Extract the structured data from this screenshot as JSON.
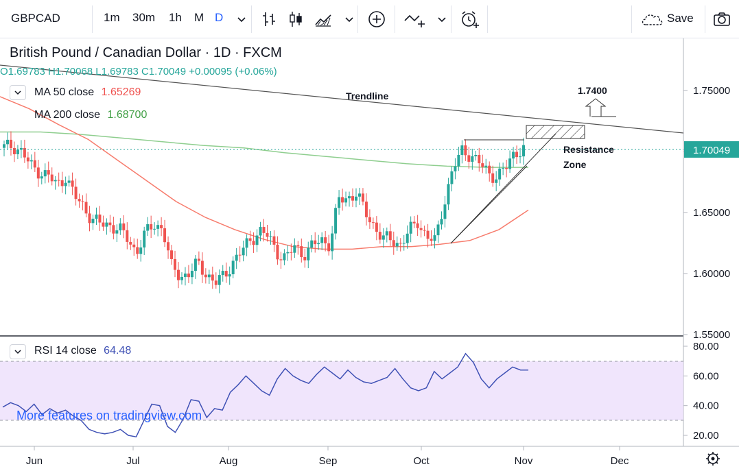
{
  "toolbar": {
    "symbol": "GBPCAD",
    "intervals": [
      "1m",
      "30m",
      "1h",
      "M",
      "D"
    ],
    "active_interval": "D",
    "save_label": "Save",
    "icons": [
      "chevron-down-icon",
      "bar-chart-icon",
      "candles-icon",
      "area-chart-icon",
      "add-indicator-icon",
      "compare-icon",
      "alert-clock-icon",
      "cloud-icon",
      "camera-icon"
    ]
  },
  "legend": {
    "title": "British Pound / Canadian Dollar · 1D · FXCM",
    "ohlc": "O1.69783 H1.70068 L1.69783 C1.70049 +0.00095 (+0.06%)",
    "ma50_label": "MA 50 close",
    "ma50_value": "1.65269",
    "ma200_label": "MA 200 close",
    "ma200_value": "1.68700",
    "rsi_label": "RSI 14 close",
    "rsi_value": "64.48"
  },
  "watermark": "More features on tradingview.com",
  "colors": {
    "up": "#26a69a",
    "down": "#ef5350",
    "ma50": "#f77c6d",
    "ma200": "#8fce8f",
    "rsi_line": "#3f51b5",
    "rsi_band": "#ecdffb",
    "accent": "#2962ff",
    "trendline": "#555555"
  },
  "chart_data": [
    {
      "type": "candlestick",
      "title": "British Pound / Canadian Dollar · 1D · FXCM",
      "y_ticks": [
        "1.75000",
        "1.70000",
        "1.65000",
        "1.60000",
        "1.55000"
      ],
      "x_ticks": [
        "Jun",
        "Jul",
        "Aug",
        "Sep",
        "Oct",
        "Nov",
        "Dec"
      ],
      "ylim": [
        1.545,
        1.79
      ],
      "last_price": "1.70049",
      "annotations": {
        "trendline_label": "Trendline",
        "target_label": "1.7400",
        "resistance_label_1": "Resistance",
        "resistance_label_2": "Zone"
      },
      "close_path": [
        1.703,
        1.705,
        1.7,
        1.688,
        1.684,
        1.68,
        1.672,
        1.68,
        1.663,
        1.655,
        1.645,
        1.64,
        1.64,
        1.637,
        1.628,
        1.618,
        1.632,
        1.64,
        1.638,
        1.605,
        1.598,
        1.6,
        1.608,
        1.6,
        1.592,
        1.598,
        1.61,
        1.618,
        1.628,
        1.635,
        1.63,
        1.618,
        1.612,
        1.622,
        1.616,
        1.622,
        1.628,
        1.624,
        1.66,
        1.662,
        1.666,
        1.65,
        1.64,
        1.628,
        1.628,
        1.624,
        1.634,
        1.643,
        1.63,
        1.626,
        1.66,
        1.686,
        1.7,
        1.698,
        1.69,
        1.682,
        1.68,
        1.686,
        1.7,
        1.702
      ],
      "ma50_path": [
        1.745,
        1.735,
        1.722,
        1.71,
        1.693,
        1.676,
        1.659,
        1.646,
        1.636,
        1.628,
        1.622,
        1.62,
        1.62,
        1.622,
        1.622,
        1.624,
        1.627,
        1.636,
        1.652
      ],
      "ma200_path": [
        1.716,
        1.716,
        1.714,
        1.711,
        1.708,
        1.705,
        1.703,
        1.699,
        1.696,
        1.693,
        1.69,
        1.688,
        1.687,
        1.687
      ],
      "trendline": [
        1.77,
        1.714
      ]
    },
    {
      "type": "line",
      "title": "RSI 14 close",
      "y_ticks": [
        "80.00",
        "60.00",
        "40.00",
        "20.00"
      ],
      "ylim": [
        14,
        82
      ],
      "bands": [
        30,
        70
      ],
      "values": [
        39,
        42,
        40,
        36,
        41,
        34,
        38,
        35,
        37,
        33,
        30,
        24,
        22,
        21,
        22,
        24,
        20,
        19,
        30,
        41,
        40,
        26,
        22,
        31,
        44,
        43,
        32,
        38,
        37,
        49,
        54,
        60,
        55,
        50,
        47,
        58,
        65,
        60,
        57,
        55,
        61,
        66,
        62,
        58,
        64,
        59,
        56,
        55,
        57,
        59,
        65,
        58,
        52,
        50,
        52,
        63,
        58,
        62,
        66,
        75,
        69,
        58,
        52,
        58,
        62,
        66,
        64,
        64
      ]
    }
  ]
}
